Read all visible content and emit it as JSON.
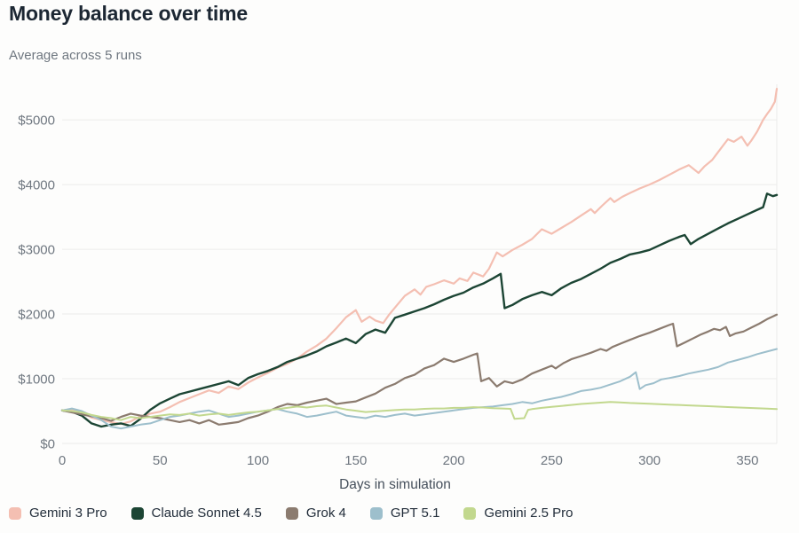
{
  "page": {
    "title": "Money balance over time",
    "subtitle": "Average across 5 runs"
  },
  "colors": {
    "background": "#fdfdfc",
    "gridline": "#ececea",
    "axis_text": "#6f7780",
    "title_text": "#1c2733",
    "subtitle_text": "#6f7780",
    "xlabel_text": "#46505c",
    "legend_text": "#222d3a"
  },
  "chart_data": {
    "type": "line",
    "title": "Money balance over time",
    "subtitle": "Average across 5 runs",
    "xlabel": "Days in simulation",
    "ylabel": "",
    "xlim": [
      0,
      365
    ],
    "ylim": [
      0,
      5550
    ],
    "grid": "horizontal",
    "legend_position": "bottom",
    "x_ticks": [
      0,
      50,
      100,
      150,
      200,
      250,
      300,
      350
    ],
    "x_tick_labels": [
      "0",
      "50",
      "100",
      "150",
      "200",
      "250",
      "300",
      "350"
    ],
    "y_ticks": [
      0,
      1000,
      2000,
      3000,
      4000,
      5000
    ],
    "y_tick_labels": [
      "$0",
      "$1000",
      "$2000",
      "$3000",
      "$4000",
      "$5000"
    ],
    "series": [
      {
        "name": "Gemini 3 Pro",
        "color": "#f4bfb2",
        "stroke_width": 2.2,
        "x": [
          0,
          5,
          10,
          15,
          20,
          25,
          30,
          35,
          40,
          45,
          50,
          55,
          60,
          65,
          70,
          75,
          80,
          85,
          90,
          95,
          100,
          105,
          110,
          115,
          120,
          125,
          130,
          135,
          140,
          145,
          150,
          153,
          157,
          160,
          164,
          167,
          170,
          175,
          180,
          183,
          186,
          190,
          195,
          200,
          203,
          207,
          210,
          215,
          218,
          222,
          225,
          230,
          235,
          240,
          245,
          250,
          255,
          260,
          265,
          270,
          272,
          276,
          280,
          282,
          286,
          290,
          295,
          300,
          305,
          310,
          315,
          320,
          325,
          328,
          332,
          336,
          340,
          343,
          347,
          350,
          352,
          355,
          358,
          360,
          362,
          364,
          365
        ],
        "values": [
          510,
          530,
          480,
          400,
          360,
          330,
          300,
          340,
          420,
          460,
          490,
          560,
          640,
          700,
          760,
          820,
          780,
          880,
          840,
          940,
          1020,
          1090,
          1170,
          1230,
          1310,
          1420,
          1510,
          1620,
          1780,
          1950,
          2060,
          1880,
          1960,
          1900,
          1860,
          1990,
          2100,
          2280,
          2380,
          2300,
          2420,
          2460,
          2520,
          2470,
          2550,
          2510,
          2640,
          2580,
          2700,
          2950,
          2890,
          2990,
          3070,
          3160,
          3310,
          3240,
          3330,
          3420,
          3520,
          3620,
          3560,
          3680,
          3790,
          3730,
          3810,
          3870,
          3940,
          4000,
          4070,
          4150,
          4230,
          4300,
          4180,
          4280,
          4380,
          4540,
          4700,
          4660,
          4740,
          4600,
          4680,
          4820,
          5000,
          5090,
          5170,
          5280,
          5480
        ]
      },
      {
        "name": "Claude Sonnet 4.5",
        "color": "#1c4534",
        "stroke_width": 2.4,
        "x": [
          0,
          5,
          10,
          15,
          20,
          25,
          30,
          35,
          40,
          45,
          50,
          55,
          60,
          65,
          70,
          75,
          80,
          85,
          90,
          95,
          100,
          105,
          110,
          115,
          120,
          125,
          130,
          135,
          140,
          145,
          150,
          155,
          160,
          165,
          170,
          175,
          180,
          185,
          190,
          195,
          200,
          205,
          210,
          215,
          220,
          224,
          226,
          230,
          235,
          240,
          245,
          250,
          255,
          260,
          265,
          270,
          275,
          280,
          285,
          290,
          295,
          300,
          305,
          310,
          315,
          318,
          321,
          325,
          330,
          335,
          340,
          345,
          350,
          355,
          358,
          360,
          363,
          365
        ],
        "values": [
          510,
          490,
          430,
          310,
          260,
          290,
          310,
          270,
          380,
          520,
          620,
          690,
          760,
          800,
          840,
          880,
          920,
          960,
          900,
          1010,
          1070,
          1120,
          1180,
          1260,
          1310,
          1360,
          1420,
          1500,
          1560,
          1620,
          1550,
          1690,
          1760,
          1710,
          1940,
          1990,
          2040,
          2090,
          2150,
          2220,
          2280,
          2330,
          2410,
          2470,
          2550,
          2620,
          2090,
          2140,
          2230,
          2290,
          2340,
          2290,
          2400,
          2480,
          2540,
          2620,
          2700,
          2790,
          2850,
          2920,
          2950,
          2990,
          3060,
          3130,
          3190,
          3220,
          3080,
          3160,
          3240,
          3320,
          3400,
          3470,
          3540,
          3610,
          3650,
          3860,
          3820,
          3840
        ]
      },
      {
        "name": "Grok 4",
        "color": "#8b7b6f",
        "stroke_width": 2.2,
        "x": [
          0,
          5,
          10,
          15,
          20,
          25,
          30,
          35,
          40,
          45,
          50,
          55,
          60,
          65,
          70,
          75,
          80,
          85,
          90,
          95,
          100,
          105,
          110,
          115,
          120,
          125,
          130,
          135,
          140,
          145,
          150,
          155,
          160,
          165,
          170,
          175,
          180,
          185,
          190,
          195,
          200,
          205,
          210,
          212,
          214,
          218,
          222,
          226,
          230,
          235,
          240,
          245,
          250,
          252,
          256,
          260,
          265,
          270,
          275,
          278,
          281,
          285,
          290,
          295,
          300,
          305,
          310,
          312,
          314,
          318,
          322,
          326,
          330,
          333,
          336,
          339,
          341,
          344,
          348,
          352,
          356,
          360,
          365
        ],
        "values": [
          510,
          480,
          450,
          420,
          390,
          350,
          410,
          460,
          430,
          410,
          390,
          360,
          330,
          360,
          310,
          360,
          290,
          310,
          330,
          390,
          430,
          490,
          560,
          610,
          590,
          630,
          660,
          690,
          610,
          630,
          650,
          710,
          770,
          860,
          920,
          1010,
          1060,
          1160,
          1210,
          1310,
          1260,
          1310,
          1370,
          1390,
          960,
          1010,
          880,
          960,
          930,
          990,
          1080,
          1140,
          1200,
          1160,
          1240,
          1300,
          1350,
          1400,
          1460,
          1430,
          1490,
          1540,
          1600,
          1660,
          1710,
          1770,
          1830,
          1850,
          1500,
          1560,
          1620,
          1680,
          1730,
          1770,
          1750,
          1800,
          1660,
          1700,
          1730,
          1790,
          1850,
          1920,
          1990
        ]
      },
      {
        "name": "GPT 5.1",
        "color": "#9dbfcc",
        "stroke_width": 2,
        "x": [
          0,
          5,
          10,
          15,
          20,
          25,
          30,
          35,
          40,
          45,
          50,
          55,
          60,
          65,
          70,
          75,
          80,
          85,
          90,
          95,
          100,
          105,
          110,
          115,
          120,
          125,
          130,
          135,
          140,
          145,
          150,
          155,
          160,
          165,
          170,
          175,
          180,
          185,
          190,
          195,
          200,
          205,
          210,
          215,
          220,
          225,
          230,
          235,
          240,
          245,
          250,
          255,
          260,
          265,
          270,
          275,
          280,
          285,
          290,
          293,
          295,
          298,
          302,
          306,
          310,
          315,
          320,
          325,
          330,
          335,
          340,
          345,
          350,
          355,
          360,
          365
        ],
        "values": [
          510,
          540,
          500,
          430,
          360,
          260,
          230,
          260,
          290,
          310,
          360,
          410,
          430,
          460,
          490,
          510,
          460,
          410,
          430,
          460,
          490,
          510,
          530,
          490,
          460,
          410,
          430,
          460,
          490,
          430,
          410,
          390,
          430,
          410,
          440,
          460,
          430,
          450,
          470,
          490,
          510,
          530,
          550,
          560,
          570,
          590,
          610,
          640,
          620,
          660,
          690,
          720,
          760,
          810,
          830,
          860,
          910,
          960,
          1030,
          1100,
          840,
          900,
          930,
          990,
          1010,
          1040,
          1080,
          1110,
          1140,
          1180,
          1250,
          1290,
          1330,
          1380,
          1420,
          1460
        ]
      },
      {
        "name": "Gemini 2.5 Pro",
        "color": "#c2d88e",
        "stroke_width": 2,
        "x": [
          0,
          5,
          10,
          15,
          20,
          25,
          30,
          35,
          40,
          45,
          50,
          55,
          60,
          65,
          70,
          75,
          80,
          85,
          90,
          95,
          100,
          105,
          110,
          115,
          120,
          125,
          130,
          135,
          140,
          145,
          150,
          155,
          160,
          165,
          170,
          175,
          180,
          185,
          190,
          195,
          200,
          205,
          210,
          215,
          220,
          225,
          229,
          231,
          236,
          238,
          240,
          245,
          250,
          255,
          260,
          265,
          270,
          275,
          280,
          285,
          290,
          300,
          310,
          320,
          330,
          340,
          350,
          360,
          365
        ],
        "values": [
          510,
          500,
          480,
          440,
          410,
          390,
          360,
          410,
          390,
          410,
          430,
          450,
          440,
          460,
          430,
          450,
          460,
          440,
          460,
          480,
          490,
          510,
          530,
          550,
          570,
          555,
          575,
          585,
          555,
          525,
          505,
          485,
          495,
          505,
          515,
          525,
          525,
          535,
          540,
          540,
          550,
          550,
          560,
          555,
          545,
          540,
          535,
          380,
          390,
          520,
          530,
          550,
          565,
          580,
          595,
          610,
          620,
          630,
          640,
          635,
          625,
          612,
          600,
          588,
          575,
          562,
          550,
          538,
          532
        ]
      }
    ]
  }
}
